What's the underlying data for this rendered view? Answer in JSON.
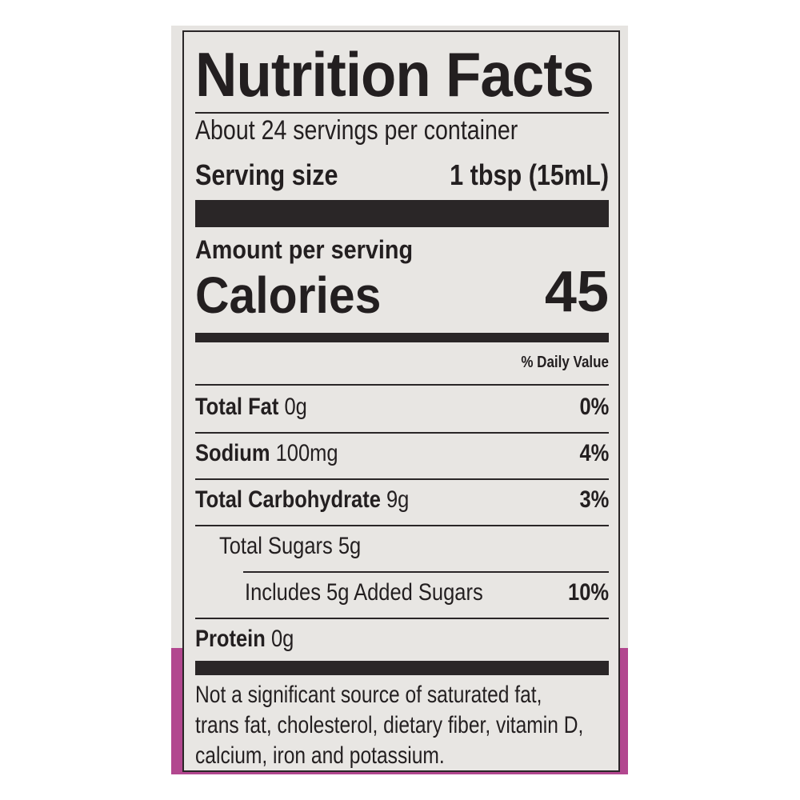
{
  "colors": {
    "accent": "#b2478f",
    "label_bg": "#e8e6e3",
    "ink": "#231f20"
  },
  "title": "Nutrition Facts",
  "servings_per_container": "About 24 servings per container",
  "serving_size": {
    "label": "Serving size",
    "value": "1 tbsp (15mL)"
  },
  "amount_per_serving": "Amount per serving",
  "calories": {
    "label": "Calories",
    "value": "45"
  },
  "daily_value_header": "% Daily Value",
  "nutrients": [
    {
      "name": "Total Fat",
      "amount": "0g",
      "dv": "0%"
    },
    {
      "name": "Sodium",
      "amount": "100mg",
      "dv": "4%"
    },
    {
      "name": "Total Carbohydrate",
      "amount": "9g",
      "dv": "3%"
    },
    {
      "name": "Total Sugars 5g",
      "amount": "",
      "dv": ""
    },
    {
      "name": "Includes 5g Added Sugars",
      "amount": "",
      "dv": "10%"
    },
    {
      "name": "Protein",
      "amount": "0g",
      "dv": ""
    }
  ],
  "footnote": [
    "Not a significant source of saturated fat,",
    "trans fat, cholesterol, dietary fiber, vitamin D,",
    "calcium, iron and potassium."
  ]
}
